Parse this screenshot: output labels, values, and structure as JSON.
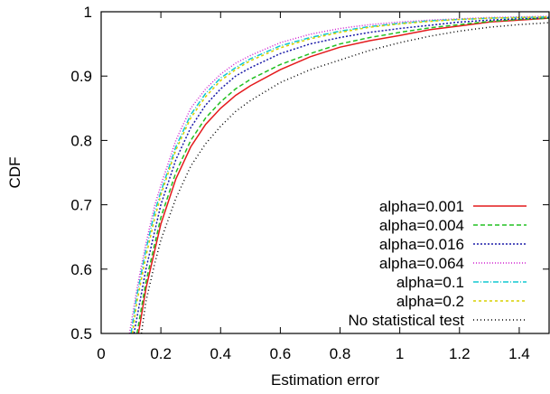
{
  "chart_data": {
    "type": "line",
    "title": "",
    "xlabel": "Estimation error",
    "ylabel": "CDF",
    "xlim": [
      0,
      1.5
    ],
    "ylim": [
      0.5,
      1.0
    ],
    "xticks": [
      0,
      0.2,
      0.4,
      0.6,
      0.8,
      1,
      1.2,
      1.4
    ],
    "xtick_labels": [
      "0",
      "0.2",
      "0.4",
      "0.6",
      "0.8",
      "1",
      "1.2",
      "1.4"
    ],
    "yticks": [
      0.5,
      0.6,
      0.7,
      0.8,
      0.9,
      1.0
    ],
    "ytick_labels": [
      "0.5",
      "0.6",
      "0.7",
      "0.8",
      "0.9",
      "1"
    ],
    "grid": false,
    "legend_position": "bottom-right",
    "series": [
      {
        "name": "alpha=0.001",
        "color": "#e41a1c",
        "dash": "",
        "x": [
          0.125,
          0.15,
          0.18,
          0.2,
          0.25,
          0.3,
          0.35,
          0.4,
          0.45,
          0.5,
          0.6,
          0.7,
          0.8,
          0.9,
          1.0,
          1.1,
          1.2,
          1.3,
          1.4,
          1.5
        ],
        "y": [
          0.5,
          0.57,
          0.63,
          0.67,
          0.74,
          0.79,
          0.825,
          0.85,
          0.87,
          0.885,
          0.91,
          0.93,
          0.945,
          0.955,
          0.963,
          0.972,
          0.978,
          0.984,
          0.987,
          0.99
        ]
      },
      {
        "name": "alpha=0.004",
        "color": "#22c022",
        "dash": "5,3",
        "x": [
          0.12,
          0.15,
          0.18,
          0.2,
          0.25,
          0.3,
          0.35,
          0.4,
          0.45,
          0.5,
          0.6,
          0.7,
          0.8,
          0.9,
          1.0,
          1.1,
          1.2,
          1.3,
          1.4,
          1.5
        ],
        "y": [
          0.5,
          0.58,
          0.64,
          0.68,
          0.75,
          0.8,
          0.835,
          0.86,
          0.88,
          0.895,
          0.918,
          0.935,
          0.95,
          0.96,
          0.968,
          0.975,
          0.98,
          0.985,
          0.988,
          0.99
        ]
      },
      {
        "name": "alpha=0.016",
        "color": "#1a1aa8",
        "dash": "2,2",
        "x": [
          0.11,
          0.15,
          0.18,
          0.2,
          0.25,
          0.3,
          0.35,
          0.4,
          0.45,
          0.5,
          0.6,
          0.7,
          0.8,
          0.9,
          1.0,
          1.1,
          1.2,
          1.3,
          1.4,
          1.5
        ],
        "y": [
          0.5,
          0.6,
          0.66,
          0.7,
          0.77,
          0.82,
          0.855,
          0.88,
          0.9,
          0.913,
          0.935,
          0.95,
          0.96,
          0.968,
          0.974,
          0.979,
          0.984,
          0.987,
          0.989,
          0.991
        ]
      },
      {
        "name": "alpha=0.064",
        "color": "#d020d0",
        "dash": "1,2",
        "x": [
          0.095,
          0.12,
          0.15,
          0.18,
          0.2,
          0.25,
          0.3,
          0.35,
          0.4,
          0.45,
          0.5,
          0.6,
          0.7,
          0.8,
          0.9,
          1.0,
          1.1,
          1.2,
          1.3,
          1.4,
          1.5
        ],
        "y": [
          0.5,
          0.57,
          0.64,
          0.7,
          0.73,
          0.8,
          0.85,
          0.88,
          0.903,
          0.92,
          0.932,
          0.952,
          0.965,
          0.974,
          0.98,
          0.984,
          0.987,
          0.989,
          0.991,
          0.992,
          0.993
        ]
      },
      {
        "name": "alpha=0.1",
        "color": "#10c8d0",
        "dash": "6,2,1,2",
        "x": [
          0.1,
          0.12,
          0.15,
          0.18,
          0.2,
          0.25,
          0.3,
          0.35,
          0.4,
          0.45,
          0.5,
          0.6,
          0.7,
          0.8,
          0.9,
          1.0,
          1.1,
          1.2,
          1.3,
          1.4,
          1.5
        ],
        "y": [
          0.5,
          0.56,
          0.63,
          0.69,
          0.72,
          0.79,
          0.84,
          0.873,
          0.897,
          0.913,
          0.927,
          0.947,
          0.96,
          0.97,
          0.977,
          0.982,
          0.986,
          0.988,
          0.99,
          0.991,
          0.992
        ]
      },
      {
        "name": "alpha=0.2",
        "color": "#d8d000",
        "dash": "3,3",
        "x": [
          0.105,
          0.12,
          0.15,
          0.18,
          0.2,
          0.25,
          0.3,
          0.35,
          0.4,
          0.45,
          0.5,
          0.6,
          0.7,
          0.8,
          0.9,
          1.0,
          1.1,
          1.2,
          1.3,
          1.4,
          1.5
        ],
        "y": [
          0.5,
          0.55,
          0.62,
          0.68,
          0.715,
          0.785,
          0.835,
          0.868,
          0.893,
          0.91,
          0.924,
          0.944,
          0.958,
          0.968,
          0.976,
          0.981,
          0.985,
          0.988,
          0.99,
          0.991,
          0.992
        ]
      },
      {
        "name": "No statistical test",
        "color": "#000000",
        "dash": "1,3",
        "x": [
          0.135,
          0.15,
          0.18,
          0.2,
          0.25,
          0.3,
          0.35,
          0.4,
          0.45,
          0.5,
          0.6,
          0.7,
          0.8,
          0.9,
          1.0,
          1.1,
          1.2,
          1.3,
          1.4,
          1.5
        ],
        "y": [
          0.5,
          0.55,
          0.61,
          0.645,
          0.71,
          0.76,
          0.795,
          0.822,
          0.845,
          0.862,
          0.89,
          0.91,
          0.925,
          0.94,
          0.952,
          0.962,
          0.97,
          0.976,
          0.98,
          0.983
        ]
      }
    ]
  }
}
